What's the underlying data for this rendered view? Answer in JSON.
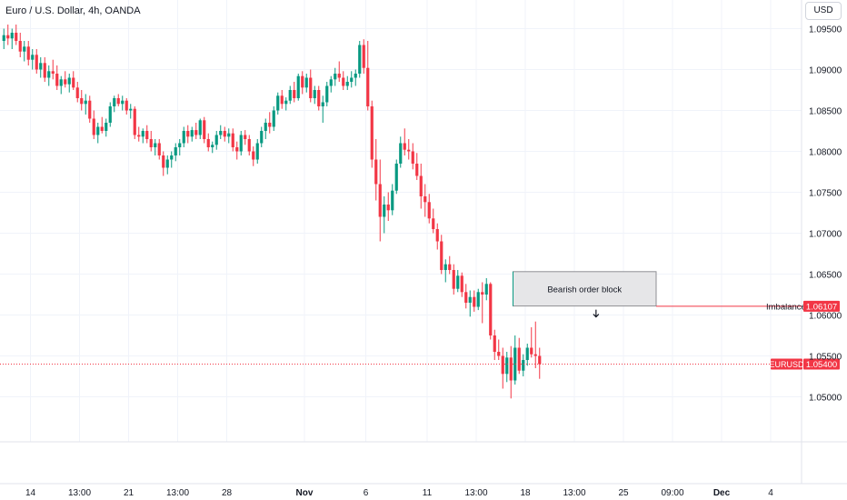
{
  "header": {
    "title": "Euro / U.S. Dollar, 4h, OANDA",
    "currency": "USD"
  },
  "chart_data": {
    "type": "candlestick",
    "symbol": "EURUSD",
    "ylim": [
      1.0445,
      1.0985
    ],
    "y_ticks": [
      "1.09500",
      "1.09000",
      "1.08500",
      "1.08000",
      "1.07500",
      "1.07000",
      "1.06500",
      "1.06000",
      "1.05500",
      "1.05000"
    ],
    "y_tick_values": [
      1.095,
      1.09,
      1.085,
      1.08,
      1.075,
      1.07,
      1.065,
      1.06,
      1.055,
      1.05
    ],
    "x_ticks": [
      {
        "label": "14",
        "bar": 7,
        "bold": false
      },
      {
        "label": "13:00",
        "bar": 19,
        "bold": false
      },
      {
        "label": "21",
        "bar": 31,
        "bold": false
      },
      {
        "label": "13:00",
        "bar": 43,
        "bold": false
      },
      {
        "label": "28",
        "bar": 55,
        "bold": false
      },
      {
        "label": "Nov",
        "bar": 74,
        "bold": true
      },
      {
        "label": "6",
        "bar": 89,
        "bold": false
      },
      {
        "label": "11",
        "bar": 104,
        "bold": false
      },
      {
        "label": "13:00",
        "bar": 116,
        "bold": false
      },
      {
        "label": "18",
        "bar": 128,
        "bold": false
      },
      {
        "label": "13:00",
        "bar": 140,
        "bold": false
      },
      {
        "label": "25",
        "bar": 152,
        "bold": false
      },
      {
        "label": "09:00",
        "bar": 164,
        "bold": false
      },
      {
        "label": "Dec",
        "bar": 176,
        "bold": true
      },
      {
        "label": "4",
        "bar": 188,
        "bold": false
      }
    ],
    "bar_count_visible": 205,
    "candles": [
      [
        1.0935,
        1.095,
        1.0925,
        1.0942
      ],
      [
        1.0942,
        1.0955,
        1.093,
        1.0938
      ],
      [
        1.0938,
        1.095,
        1.0925,
        1.0945
      ],
      [
        1.0945,
        1.0955,
        1.093,
        1.0935
      ],
      [
        1.0935,
        1.0945,
        1.0915,
        1.0922
      ],
      [
        1.0922,
        1.0935,
        1.091,
        1.0928
      ],
      [
        1.0928,
        1.0935,
        1.0905,
        1.0912
      ],
      [
        1.0912,
        1.0925,
        1.09,
        1.0918
      ],
      [
        1.0918,
        1.0925,
        1.0895,
        1.09
      ],
      [
        1.09,
        1.0915,
        1.089,
        1.0908
      ],
      [
        1.0908,
        1.0915,
        1.0885,
        1.089
      ],
      [
        1.089,
        1.0905,
        1.088,
        1.0898
      ],
      [
        1.0898,
        1.0912,
        1.0888,
        1.0895
      ],
      [
        1.0895,
        1.0905,
        1.0875,
        1.088
      ],
      [
        1.088,
        1.0892,
        1.087,
        1.0888
      ],
      [
        1.0888,
        1.0898,
        1.0878,
        1.0882
      ],
      [
        1.0882,
        1.0895,
        1.0872,
        1.089
      ],
      [
        1.089,
        1.0898,
        1.0875,
        1.0878
      ],
      [
        1.0878,
        1.0885,
        1.086,
        1.0865
      ],
      [
        1.0865,
        1.0875,
        1.085,
        1.0858
      ],
      [
        1.0858,
        1.087,
        1.0845,
        1.0862
      ],
      [
        1.0862,
        1.0868,
        1.0835,
        1.084
      ],
      [
        1.084,
        1.085,
        1.0815,
        1.082
      ],
      [
        1.082,
        1.0835,
        1.081,
        1.083
      ],
      [
        1.083,
        1.0842,
        1.0822,
        1.0825
      ],
      [
        1.0825,
        1.084,
        1.0818,
        1.0835
      ],
      [
        1.0835,
        1.086,
        1.083,
        1.0855
      ],
      [
        1.0855,
        1.0868,
        1.0848,
        1.0865
      ],
      [
        1.0865,
        1.087,
        1.0855,
        1.0858
      ],
      [
        1.0858,
        1.0868,
        1.085,
        1.0862
      ],
      [
        1.0862,
        1.0865,
        1.0845,
        1.085
      ],
      [
        1.085,
        1.0858,
        1.084,
        1.0852
      ],
      [
        1.0852,
        1.0855,
        1.0815,
        1.082
      ],
      [
        1.082,
        1.083,
        1.0812,
        1.0818
      ],
      [
        1.0818,
        1.0828,
        1.081,
        1.0825
      ],
      [
        1.0825,
        1.0832,
        1.081,
        1.0815
      ],
      [
        1.0815,
        1.0825,
        1.08,
        1.0805
      ],
      [
        1.0805,
        1.0815,
        1.0795,
        1.081
      ],
      [
        1.081,
        1.0815,
        1.079,
        1.0795
      ],
      [
        1.0795,
        1.08,
        1.077,
        1.078
      ],
      [
        1.078,
        1.0795,
        1.0772,
        1.079
      ],
      [
        1.079,
        1.08,
        1.078,
        1.0795
      ],
      [
        1.0795,
        1.081,
        1.0788,
        1.0805
      ],
      [
        1.0805,
        1.0815,
        1.0795,
        1.081
      ],
      [
        1.081,
        1.083,
        1.0805,
        1.0825
      ],
      [
        1.0825,
        1.0832,
        1.081,
        1.0818
      ],
      [
        1.0818,
        1.083,
        1.0812,
        1.0826
      ],
      [
        1.0826,
        1.0835,
        1.0815,
        1.082
      ],
      [
        1.082,
        1.084,
        1.0815,
        1.0838
      ],
      [
        1.0838,
        1.0842,
        1.081,
        1.0815
      ],
      [
        1.0815,
        1.0822,
        1.08,
        1.0805
      ],
      [
        1.0805,
        1.0812,
        1.0798,
        1.0808
      ],
      [
        1.0808,
        1.0825,
        1.0802,
        1.082
      ],
      [
        1.082,
        1.0832,
        1.0815,
        1.0825
      ],
      [
        1.0825,
        1.083,
        1.0812,
        1.0818
      ],
      [
        1.0818,
        1.0828,
        1.081,
        1.0822
      ],
      [
        1.0822,
        1.0828,
        1.08,
        1.0805
      ],
      [
        1.0805,
        1.0812,
        1.079,
        1.08
      ],
      [
        1.08,
        1.0825,
        1.0795,
        1.082
      ],
      [
        1.082,
        1.0826,
        1.0808,
        1.0815
      ],
      [
        1.0815,
        1.082,
        1.0795,
        1.08
      ],
      [
        1.08,
        1.0806,
        1.0782,
        1.079
      ],
      [
        1.079,
        1.0815,
        1.0785,
        1.081
      ],
      [
        1.081,
        1.083,
        1.0805,
        1.0825
      ],
      [
        1.0825,
        1.084,
        1.0815,
        1.0835
      ],
      [
        1.0835,
        1.0848,
        1.0822,
        1.083
      ],
      [
        1.083,
        1.0855,
        1.0825,
        1.085
      ],
      [
        1.085,
        1.0872,
        1.0845,
        1.0868
      ],
      [
        1.0868,
        1.0875,
        1.0852,
        1.0858
      ],
      [
        1.0858,
        1.0866,
        1.085,
        1.0862
      ],
      [
        1.0862,
        1.088,
        1.0858,
        1.0875
      ],
      [
        1.0875,
        1.0885,
        1.086,
        1.0865
      ],
      [
        1.0865,
        1.0895,
        1.0862,
        1.0892
      ],
      [
        1.0892,
        1.0898,
        1.087,
        1.0878
      ],
      [
        1.0878,
        1.0895,
        1.0872,
        1.089
      ],
      [
        1.089,
        1.09,
        1.086,
        1.0865
      ],
      [
        1.0865,
        1.088,
        1.0858,
        1.0875
      ],
      [
        1.0875,
        1.088,
        1.085,
        1.0855
      ],
      [
        1.0855,
        1.0868,
        1.0835,
        1.086
      ],
      [
        1.086,
        1.0885,
        1.0855,
        1.088
      ],
      [
        1.088,
        1.0892,
        1.0872,
        1.0888
      ],
      [
        1.0888,
        1.0902,
        1.088,
        1.0895
      ],
      [
        1.0895,
        1.091,
        1.0885,
        1.089
      ],
      [
        1.089,
        1.0898,
        1.0875,
        1.088
      ],
      [
        1.088,
        1.0892,
        1.0875,
        1.0885
      ],
      [
        1.0885,
        1.0898,
        1.0878,
        1.089
      ],
      [
        1.089,
        1.09,
        1.088,
        1.0895
      ],
      [
        1.0895,
        1.0935,
        1.089,
        1.093
      ],
      [
        1.093,
        1.0937,
        1.0895,
        1.0902
      ],
      [
        1.0902,
        1.0935,
        1.085,
        1.0855
      ],
      [
        1.0855,
        1.0862,
        1.078,
        1.079
      ],
      [
        1.079,
        1.0815,
        1.074,
        1.076
      ],
      [
        1.076,
        1.079,
        1.069,
        1.072
      ],
      [
        1.072,
        1.0745,
        1.07,
        1.0735
      ],
      [
        1.0735,
        1.075,
        1.0715,
        1.0728
      ],
      [
        1.0728,
        1.076,
        1.0722,
        1.0752
      ],
      [
        1.0752,
        1.079,
        1.0748,
        1.0785
      ],
      [
        1.0785,
        1.0818,
        1.078,
        1.081
      ],
      [
        1.081,
        1.0828,
        1.0795,
        1.0802
      ],
      [
        1.0802,
        1.0815,
        1.079,
        1.08
      ],
      [
        1.08,
        1.081,
        1.0778,
        1.0785
      ],
      [
        1.0785,
        1.0798,
        1.0765,
        1.077
      ],
      [
        1.077,
        1.0785,
        1.073,
        1.0745
      ],
      [
        1.0745,
        1.076,
        1.072,
        1.0738
      ],
      [
        1.0738,
        1.0748,
        1.0712,
        1.0718
      ],
      [
        1.0718,
        1.073,
        1.07,
        1.0705
      ],
      [
        1.0705,
        1.0712,
        1.068,
        1.069
      ],
      [
        1.069,
        1.0698,
        1.065,
        1.0655
      ],
      [
        1.0655,
        1.0668,
        1.064,
        1.0662
      ],
      [
        1.0662,
        1.0672,
        1.065,
        1.0655
      ],
      [
        1.0655,
        1.0662,
        1.0625,
        1.0632
      ],
      [
        1.0632,
        1.0655,
        1.0628,
        1.0648
      ],
      [
        1.0648,
        1.0652,
        1.0622,
        1.0628
      ],
      [
        1.0628,
        1.0638,
        1.0608,
        1.0615
      ],
      [
        1.0615,
        1.063,
        1.0598,
        1.0622
      ],
      [
        1.0622,
        1.063,
        1.0604,
        1.061
      ],
      [
        1.061,
        1.0632,
        1.0606,
        1.0628
      ],
      [
        1.0628,
        1.064,
        1.059,
        1.0625
      ],
      [
        1.0625,
        1.0645,
        1.0618,
        1.0638
      ],
      [
        1.0638,
        1.064,
        1.057,
        1.0575
      ],
      [
        1.0575,
        1.0582,
        1.0545,
        1.0555
      ],
      [
        1.0555,
        1.057,
        1.0545,
        1.055
      ],
      [
        1.055,
        1.056,
        1.051,
        1.0528
      ],
      [
        1.0528,
        1.0555,
        1.0518,
        1.0548
      ],
      [
        1.0548,
        1.0562,
        1.0498,
        1.052
      ],
      [
        1.052,
        1.0575,
        1.0515,
        1.056
      ],
      [
        1.056,
        1.0572,
        1.0528,
        1.0532
      ],
      [
        1.0532,
        1.0552,
        1.0525,
        1.0545
      ],
      [
        1.0545,
        1.0565,
        1.0538,
        1.056
      ],
      [
        1.056,
        1.0585,
        1.0548,
        1.0552
      ],
      [
        1.0552,
        1.0592,
        1.0535,
        1.055
      ],
      [
        1.055,
        1.056,
        1.0522,
        1.054
      ]
    ],
    "annotations": [
      {
        "label": "Bearish order block",
        "x1_bar": 125,
        "x2_bar": 160,
        "y_top": 1.0653,
        "y_bottom": 1.0611
      },
      {
        "label": "Imbalance",
        "value": "1.06107",
        "price": 1.06107,
        "x1_bar": 160
      },
      {
        "label": "EURUSD",
        "value": "1.05400",
        "price": 1.054
      }
    ],
    "colors": {
      "up": "#089981",
      "down": "#f23645",
      "label_red": "#f23645",
      "grid": "#f0f3fa",
      "axis_text": "#131722"
    }
  }
}
